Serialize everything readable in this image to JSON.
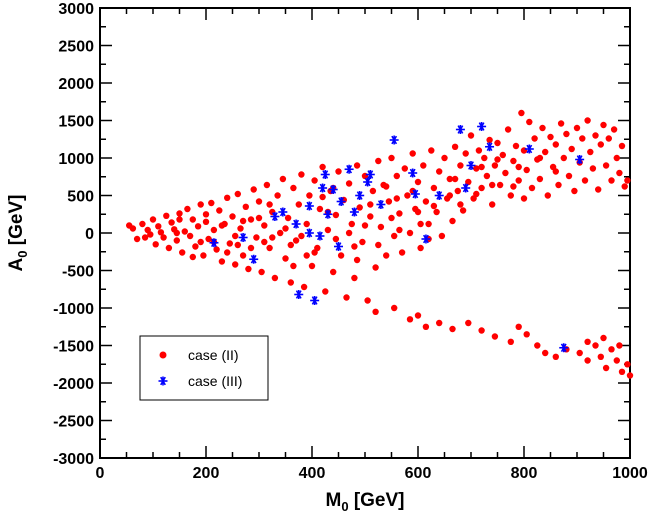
{
  "chart_data": {
    "type": "scatter",
    "title": "",
    "xlabel": "M",
    "xlabel_sub": "0",
    "xlabel_unit": " [GeV]",
    "ylabel": "A",
    "ylabel_sub": "0",
    "ylabel_unit": " [GeV]",
    "xlim": [
      0,
      1000
    ],
    "ylim": [
      -3000,
      3000
    ],
    "xticks": [
      0,
      200,
      400,
      600,
      800,
      1000
    ],
    "yticks": [
      -3000,
      -2500,
      -2000,
      -1500,
      -1000,
      -500,
      0,
      500,
      1000,
      1500,
      2000,
      2500,
      3000
    ],
    "grid": false,
    "legend_position": "lower-left",
    "colors": {
      "case_II": "#ff0000",
      "case_III": "#0000ff"
    },
    "series": [
      {
        "name": "case (II)",
        "marker": "dot",
        "points": [
          [
            55,
            100
          ],
          [
            62,
            60
          ],
          [
            70,
            -80
          ],
          [
            80,
            120
          ],
          [
            90,
            40
          ],
          [
            95,
            -20
          ],
          [
            100,
            180
          ],
          [
            105,
            -150
          ],
          [
            110,
            90
          ],
          [
            115,
            10
          ],
          [
            120,
            -60
          ],
          [
            125,
            230
          ],
          [
            130,
            -200
          ],
          [
            135,
            140
          ],
          [
            140,
            50
          ],
          [
            145,
            -100
          ],
          [
            150,
            260
          ],
          [
            155,
            -260
          ],
          [
            160,
            20
          ],
          [
            165,
            320
          ],
          [
            170,
            -40
          ],
          [
            175,
            180
          ],
          [
            180,
            -180
          ],
          [
            185,
            90
          ],
          [
            190,
            380
          ],
          [
            195,
            -300
          ],
          [
            200,
            150
          ],
          [
            205,
            -80
          ],
          [
            210,
            400
          ],
          [
            215,
            40
          ],
          [
            220,
            -220
          ],
          [
            225,
            300
          ],
          [
            230,
            -380
          ],
          [
            235,
            120
          ],
          [
            240,
            470
          ],
          [
            245,
            -140
          ],
          [
            250,
            220
          ],
          [
            255,
            -420
          ],
          [
            260,
            520
          ],
          [
            265,
            60
          ],
          [
            270,
            -300
          ],
          [
            275,
            350
          ],
          [
            280,
            -480
          ],
          [
            285,
            180
          ],
          [
            290,
            580
          ],
          [
            295,
            -60
          ],
          [
            300,
            420
          ],
          [
            305,
            -520
          ],
          [
            310,
            100
          ],
          [
            315,
            640
          ],
          [
            320,
            -200
          ],
          [
            325,
            280
          ],
          [
            330,
            -600
          ],
          [
            335,
            500
          ],
          [
            340,
            0
          ],
          [
            345,
            720
          ],
          [
            350,
            -340
          ],
          [
            355,
            200
          ],
          [
            360,
            -660
          ],
          [
            365,
            600
          ],
          [
            370,
            -100
          ],
          [
            375,
            380
          ],
          [
            380,
            780
          ],
          [
            385,
            -720
          ],
          [
            390,
            120
          ],
          [
            395,
            500
          ],
          [
            400,
            -440
          ],
          [
            405,
            700
          ],
          [
            410,
            -200
          ],
          [
            415,
            320
          ],
          [
            420,
            880
          ],
          [
            425,
            -780
          ],
          [
            430,
            40
          ],
          [
            435,
            560
          ],
          [
            440,
            -520
          ],
          [
            445,
            240
          ],
          [
            450,
            820
          ],
          [
            455,
            -300
          ],
          [
            460,
            440
          ],
          [
            465,
            -860
          ],
          [
            470,
            660
          ],
          [
            475,
            120
          ],
          [
            480,
            -600
          ],
          [
            485,
            900
          ],
          [
            490,
            340
          ],
          [
            495,
            -120
          ],
          [
            500,
            760
          ],
          [
            505,
            -900
          ],
          [
            510,
            220
          ],
          [
            515,
            560
          ],
          [
            520,
            -460
          ],
          [
            525,
            960
          ],
          [
            530,
            80
          ],
          [
            535,
            640
          ],
          [
            540,
            -300
          ],
          [
            545,
            420
          ],
          [
            550,
            1000
          ],
          [
            555,
            -40
          ],
          [
            560,
            760
          ],
          [
            565,
            260
          ],
          [
            570,
            -260
          ],
          [
            575,
            860
          ],
          [
            580,
            500
          ],
          [
            585,
            0
          ],
          [
            590,
            1060
          ],
          [
            595,
            320
          ],
          [
            600,
            680
          ],
          [
            605,
            -200
          ],
          [
            610,
            900
          ],
          [
            615,
            420
          ],
          [
            620,
            120
          ],
          [
            625,
            1100
          ],
          [
            630,
            600
          ],
          [
            635,
            280
          ],
          [
            640,
            820
          ],
          [
            645,
            -40
          ],
          [
            650,
            1000
          ],
          [
            655,
            460
          ],
          [
            660,
            720
          ],
          [
            665,
            160
          ],
          [
            670,
            1150
          ],
          [
            675,
            560
          ],
          [
            680,
            900
          ],
          [
            685,
            300
          ],
          [
            690,
            1060
          ],
          [
            695,
            680
          ],
          [
            700,
            1300
          ],
          [
            705,
            460
          ],
          [
            710,
            860
          ],
          [
            715,
            1100
          ],
          [
            720,
            600
          ],
          [
            725,
            1000
          ],
          [
            730,
            760
          ],
          [
            735,
            1240
          ],
          [
            740,
            380
          ],
          [
            745,
            900
          ],
          [
            750,
            1200
          ],
          [
            755,
            640
          ],
          [
            760,
            1040
          ],
          [
            765,
            800
          ],
          [
            770,
            1380
          ],
          [
            775,
            500
          ],
          [
            780,
            960
          ],
          [
            785,
            1160
          ],
          [
            790,
            700
          ],
          [
            795,
            1600
          ],
          [
            800,
            1100
          ],
          [
            805,
            840
          ],
          [
            810,
            1480
          ],
          [
            815,
            600
          ],
          [
            820,
            1260
          ],
          [
            825,
            980
          ],
          [
            830,
            720
          ],
          [
            835,
            1400
          ],
          [
            840,
            1080
          ],
          [
            845,
            500
          ],
          [
            850,
            1280
          ],
          [
            855,
            880
          ],
          [
            860,
            1180
          ],
          [
            865,
            640
          ],
          [
            870,
            1460
          ],
          [
            875,
            1000
          ],
          [
            880,
            1320
          ],
          [
            885,
            760
          ],
          [
            890,
            1120
          ],
          [
            895,
            560
          ],
          [
            900,
            1400
          ],
          [
            905,
            940
          ],
          [
            910,
            1260
          ],
          [
            915,
            700
          ],
          [
            920,
            1500
          ],
          [
            925,
            1080
          ],
          [
            930,
            860
          ],
          [
            935,
            1300
          ],
          [
            940,
            580
          ],
          [
            945,
            1180
          ],
          [
            950,
            1440
          ],
          [
            955,
            900
          ],
          [
            960,
            1260
          ],
          [
            965,
            700
          ],
          [
            970,
            1380
          ],
          [
            975,
            1000
          ],
          [
            980,
            800
          ],
          [
            985,
            1160
          ],
          [
            990,
            620
          ],
          [
            995,
            700
          ],
          [
            85,
            -60
          ],
          [
            145,
            0
          ],
          [
            175,
            -320
          ],
          [
            215,
            -120
          ],
          [
            255,
            -40
          ],
          [
            285,
            -200
          ],
          [
            325,
            -60
          ],
          [
            365,
            -440
          ],
          [
            405,
            -260
          ],
          [
            445,
            -80
          ],
          [
            485,
            -360
          ],
          [
            525,
            -160
          ],
          [
            565,
            40
          ],
          [
            605,
            120
          ],
          [
            150,
            180
          ],
          [
            190,
            -120
          ],
          [
            230,
            100
          ],
          [
            270,
            160
          ],
          [
            310,
            -120
          ],
          [
            350,
            60
          ],
          [
            390,
            -300
          ],
          [
            430,
            280
          ],
          [
            470,
            0
          ],
          [
            510,
            380
          ],
          [
            550,
            200
          ],
          [
            590,
            560
          ],
          [
            630,
            360
          ],
          [
            670,
            720
          ],
          [
            710,
            520
          ],
          [
            750,
            980
          ],
          [
            790,
            880
          ],
          [
            830,
            1000
          ],
          [
            200,
            250
          ],
          [
            260,
            -160
          ],
          [
            320,
            380
          ],
          [
            380,
            -40
          ],
          [
            440,
            600
          ],
          [
            500,
            100
          ],
          [
            560,
            460
          ],
          [
            620,
            -80
          ],
          [
            680,
            380
          ],
          [
            740,
            640
          ],
          [
            800,
            460
          ],
          [
            860,
            820
          ],
          [
            240,
            -260
          ],
          [
            300,
            200
          ],
          [
            360,
            -160
          ],
          [
            420,
            480
          ],
          [
            480,
            -180
          ],
          [
            540,
            620
          ],
          [
            600,
            280
          ],
          [
            660,
            500
          ],
          [
            720,
            880
          ],
          [
            780,
            620
          ],
          [
            520,
            -1050
          ],
          [
            555,
            -1000
          ],
          [
            585,
            -1150
          ],
          [
            600,
            -1100
          ],
          [
            615,
            -1250
          ],
          [
            640,
            -1200
          ],
          [
            665,
            -1280
          ],
          [
            695,
            -1200
          ],
          [
            720,
            -1300
          ],
          [
            745,
            -1380
          ],
          [
            775,
            -1450
          ],
          [
            790,
            -1250
          ],
          [
            805,
            -1350
          ],
          [
            825,
            -1500
          ],
          [
            840,
            -1600
          ],
          [
            860,
            -1650
          ],
          [
            880,
            -1550
          ],
          [
            905,
            -1600
          ],
          [
            920,
            -1700
          ],
          [
            935,
            -1500
          ],
          [
            945,
            -1650
          ],
          [
            955,
            -1800
          ],
          [
            965,
            -1550
          ],
          [
            975,
            -1700
          ],
          [
            985,
            -1850
          ],
          [
            995,
            -1750
          ],
          [
            920,
            -1450
          ],
          [
            950,
            -1400
          ],
          [
            980,
            -1500
          ],
          [
            1000,
            -1900
          ]
        ]
      },
      {
        "name": "case (III)",
        "marker": "asterisk",
        "points": [
          [
            215,
            -130
          ],
          [
            270,
            -60
          ],
          [
            290,
            -350
          ],
          [
            330,
            220
          ],
          [
            345,
            280
          ],
          [
            375,
            -820
          ],
          [
            395,
            0
          ],
          [
            405,
            -900
          ],
          [
            415,
            -40
          ],
          [
            420,
            600
          ],
          [
            425,
            780
          ],
          [
            430,
            250
          ],
          [
            440,
            580
          ],
          [
            455,
            420
          ],
          [
            470,
            850
          ],
          [
            480,
            280
          ],
          [
            490,
            500
          ],
          [
            505,
            680
          ],
          [
            510,
            780
          ],
          [
            530,
            380
          ],
          [
            555,
            1240
          ],
          [
            590,
            800
          ],
          [
            595,
            520
          ],
          [
            615,
            -80
          ],
          [
            640,
            500
          ],
          [
            680,
            1380
          ],
          [
            690,
            600
          ],
          [
            700,
            900
          ],
          [
            720,
            1420
          ],
          [
            735,
            1150
          ],
          [
            810,
            1120
          ],
          [
            875,
            -1530
          ],
          [
            905,
            980
          ],
          [
            370,
            120
          ],
          [
            450,
            -180
          ],
          [
            395,
            360
          ]
        ]
      }
    ]
  }
}
